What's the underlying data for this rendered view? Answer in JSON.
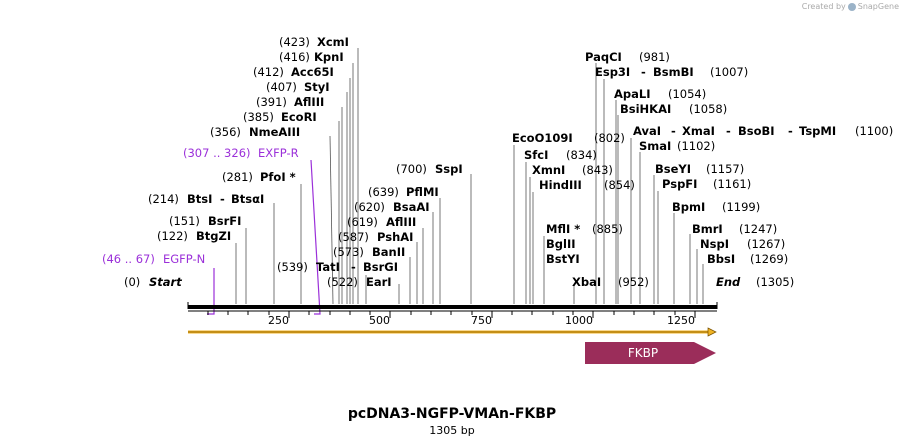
{
  "credit": {
    "prefix": "Created by",
    "product": "SnapGene"
  },
  "map": {
    "title": "pcDNA3-NGFP-VMAn-FKBP",
    "subtitle": "1305 bp",
    "length": 1305,
    "axis_ticks": [
      "250",
      "500",
      "750",
      "1000",
      "1250"
    ],
    "start_label": {
      "pos": "(0)",
      "name": "Start"
    },
    "end_label": {
      "name": "End",
      "pos": "(1305)"
    },
    "colors": {
      "primer": "#9b30d9",
      "feature": "#9b2d5a",
      "orf": "#f0b323"
    },
    "feature": {
      "name": "FKBP"
    }
  },
  "sites_left": [
    {
      "pos": "(423)",
      "name": "XcmI"
    },
    {
      "pos": "(416)",
      "name": "KpnI"
    },
    {
      "pos": "(412)",
      "name": "Acc65I"
    },
    {
      "pos": "(407)",
      "name": "StyI"
    },
    {
      "pos": "(391)",
      "name": "AflIII"
    },
    {
      "pos": "(385)",
      "name": "EcoRI"
    },
    {
      "pos": "(356)",
      "name": "NmeAIII"
    },
    {
      "pos": "(281)",
      "name": "PfoI *"
    },
    {
      "pos": "(214)",
      "name": "BtsI",
      "name2": "BtsαI"
    },
    {
      "pos": "(151)",
      "name": "BsrFI"
    },
    {
      "pos": "(122)",
      "name": "BtgZI"
    }
  ],
  "primers": [
    {
      "pos": "(307 .. 326)",
      "name": "EXFP-R"
    },
    {
      "pos": "(46 .. 67)",
      "name": "EGFP-N"
    }
  ],
  "sites_mid": [
    {
      "pos": "(700)",
      "name": "SspI"
    },
    {
      "pos": "(639)",
      "name": "PflMI"
    },
    {
      "pos": "(620)",
      "name": "BsaAI"
    },
    {
      "pos": "(619)",
      "name": "AflIII"
    },
    {
      "pos": "(587)",
      "name": "PshAI"
    },
    {
      "pos": "(573)",
      "name": "BanII"
    },
    {
      "pos": "(539)",
      "name": "TatI",
      "name2": "BsrGI"
    },
    {
      "pos": "(522)",
      "name": "EarI"
    }
  ],
  "sites_right_a": [
    {
      "name": "EcoO109I",
      "pos": "(802)"
    },
    {
      "name": "SfcI",
      "pos": "(834)"
    },
    {
      "name": "XmnI",
      "pos": "(843)"
    },
    {
      "name": "HindIII",
      "pos": "(854)"
    },
    {
      "name": "MflI *",
      "pos": "(885)"
    },
    {
      "name": "BglII",
      "pos": ""
    },
    {
      "name": "BstYI",
      "pos": ""
    },
    {
      "name": "XbaI",
      "pos": "(952)"
    }
  ],
  "sites_right_b": [
    {
      "name": "PaqCI",
      "pos": "(981)"
    },
    {
      "name": "Esp3I",
      "name2": "BsmBI",
      "pos": "(1007)"
    },
    {
      "name": "ApaLI",
      "pos": "(1054)"
    },
    {
      "name": "BsiHKAI",
      "pos": "(1058)"
    },
    {
      "name": "AvaI",
      "name2": "XmaI",
      "name3": "BsoBI",
      "name4": "TspMI",
      "pos": "(1100)"
    },
    {
      "name": "SmaI",
      "pos": "(1102)"
    },
    {
      "name": "BseYI",
      "pos": "(1157)"
    },
    {
      "name": "PspFI",
      "pos": "(1161)"
    },
    {
      "name": "BpmI",
      "pos": "(1199)"
    },
    {
      "name": "BmrI",
      "pos": "(1247)"
    },
    {
      "name": "NspI",
      "pos": "(1267)"
    },
    {
      "name": "BbsI",
      "pos": "(1269)"
    }
  ]
}
